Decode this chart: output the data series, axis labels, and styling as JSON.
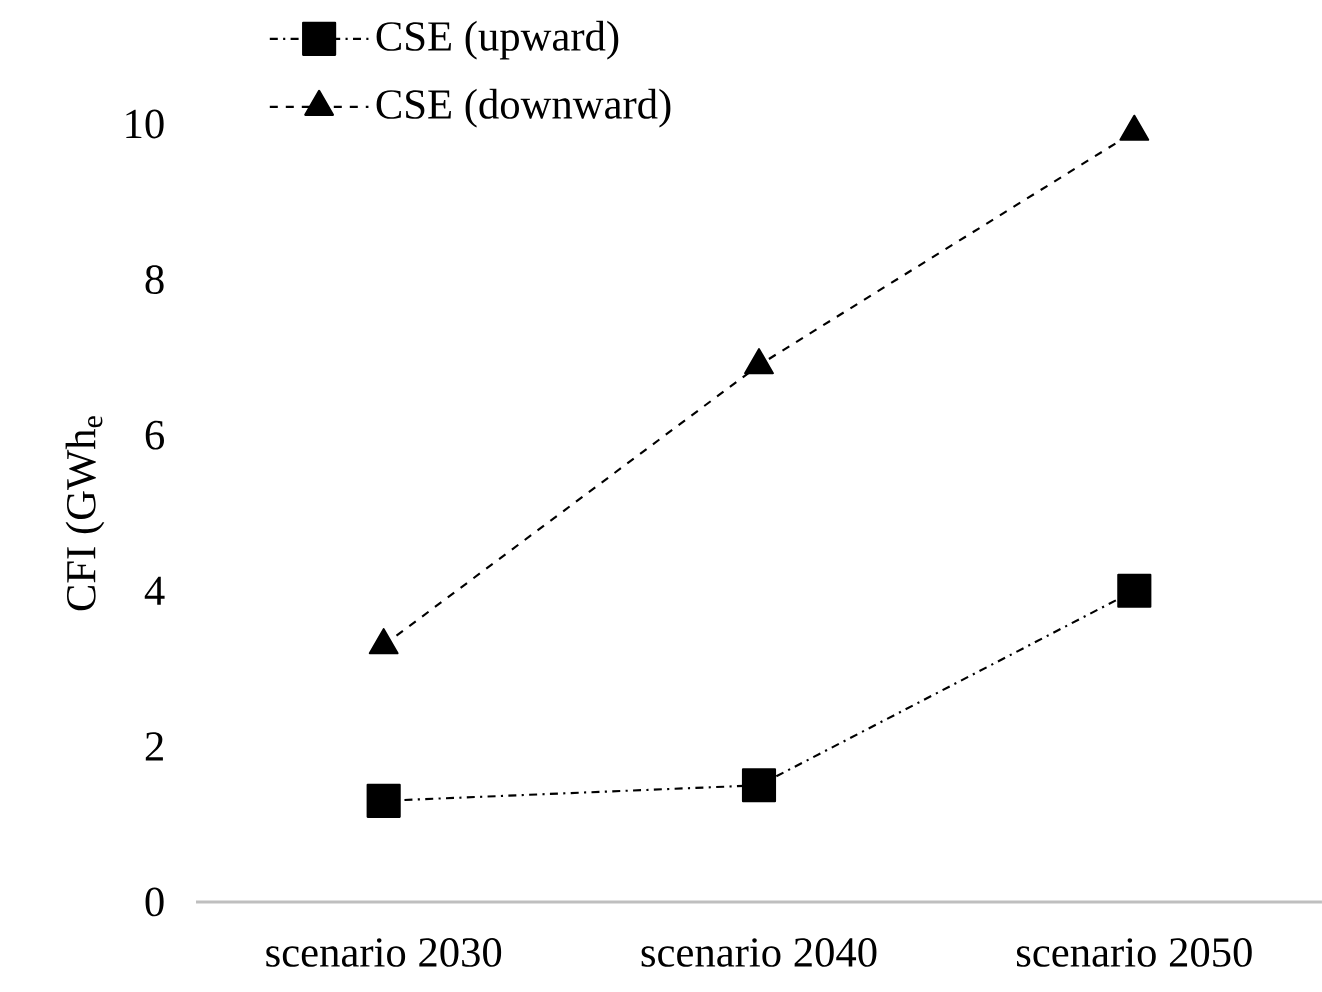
{
  "chart_data": {
    "type": "line",
    "ylabel": "CFI (GWh$_{e}$",
    "categories": [
      "scenario 2030",
      "scenario 2040",
      "scenario 2050"
    ],
    "series": [
      {
        "name": "CSE (upward)",
        "color": "#000000",
        "marker": "square",
        "line_style": "dashdot",
        "values": [
          1.3,
          1.5,
          4.0
        ]
      },
      {
        "name": "CSE (downward)",
        "color": "#000000",
        "marker": "triangle",
        "line_style": "dashed",
        "values": [
          3.3,
          6.9,
          9.9
        ]
      }
    ],
    "ylim": [
      0,
      10
    ],
    "yticks": [
      0,
      2,
      4,
      6,
      8,
      10
    ],
    "legend": "top left"
  }
}
